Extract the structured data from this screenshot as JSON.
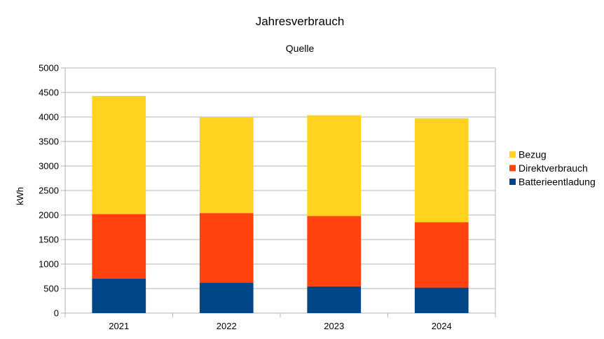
{
  "chart_data": {
    "type": "bar",
    "stacked": true,
    "title": "Jahresverbrauch",
    "subtitle": "Quelle",
    "xlabel": "",
    "ylabel": "kWh",
    "ylim": [
      0,
      5000
    ],
    "yticks": [
      0,
      500,
      1000,
      1500,
      2000,
      2500,
      3000,
      3500,
      4000,
      4500,
      5000
    ],
    "grid": true,
    "legend_position": "right",
    "categories": [
      "2021",
      "2022",
      "2023",
      "2024"
    ],
    "series": [
      {
        "name": "Batterieentladung",
        "color": "#004586",
        "values": [
          700,
          620,
          545,
          520
        ]
      },
      {
        "name": "Direktverbrauch",
        "color": "#ff420e",
        "values": [
          1320,
          1420,
          1435,
          1335
        ]
      },
      {
        "name": "Bezug",
        "color": "#ffd320",
        "values": [
          2410,
          1960,
          2055,
          2120
        ]
      }
    ],
    "legend_order": [
      "Bezug",
      "Direktverbrauch",
      "Batterieentladung"
    ]
  }
}
